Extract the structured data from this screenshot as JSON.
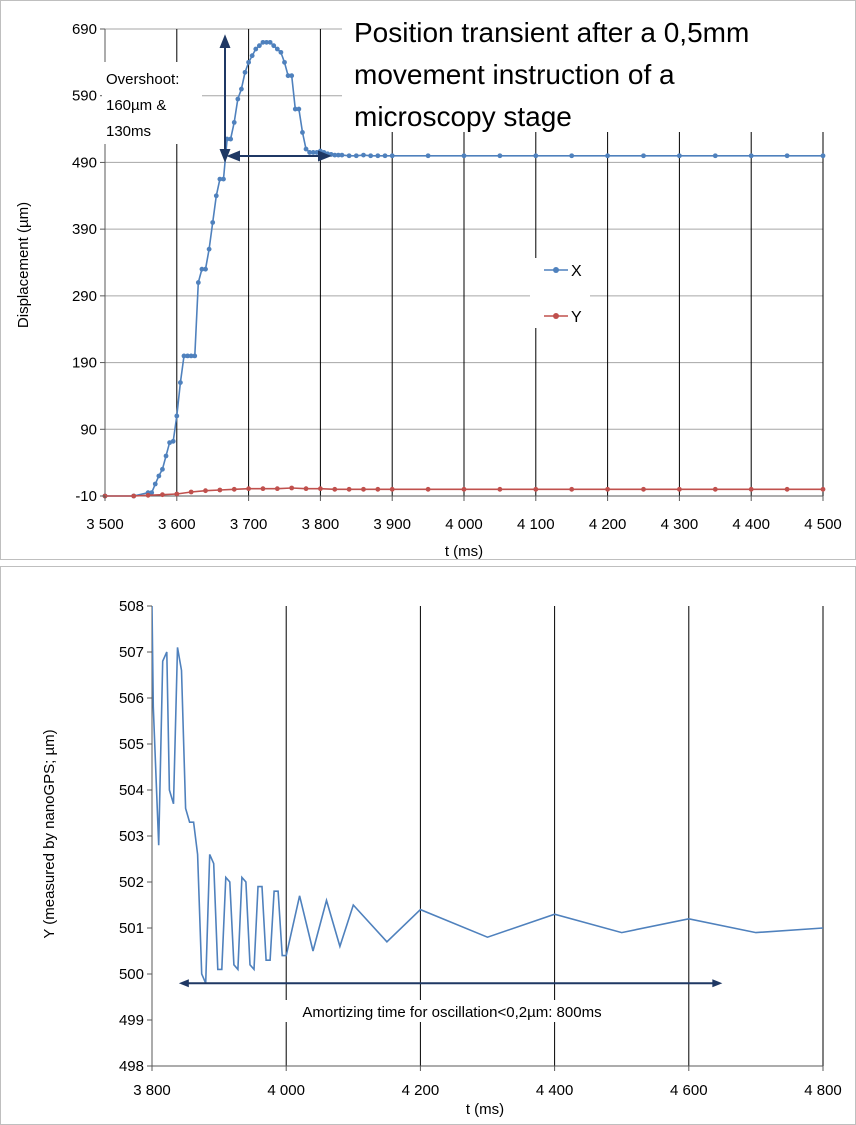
{
  "chart_data": [
    {
      "type": "line",
      "title": "Position transient after a 0,5mm movement instruction of a microscopy stage",
      "title_lines": [
        "Position transient after a 0,5mm",
        "movement instruction of a",
        "microscopy stage"
      ],
      "xlabel": "t (ms)",
      "ylabel": "Displacement (µm)",
      "xlim": [
        3500,
        4500
      ],
      "ylim": [
        -10,
        690
      ],
      "xticks": [
        3500,
        3600,
        3700,
        3800,
        3900,
        4000,
        4100,
        4200,
        4300,
        4400,
        4500
      ],
      "xtick_labels": [
        "3 500",
        "3 600",
        "3 700",
        "3 800",
        "3 900",
        "4 000",
        "4 100",
        "4 200",
        "4 300",
        "4 400",
        "4 500"
      ],
      "yticks": [
        -10,
        90,
        190,
        290,
        390,
        490,
        590,
        690
      ],
      "ytick_labels": [
        "-10",
        "90",
        "190",
        "290",
        "390",
        "490",
        "590",
        "690"
      ],
      "grid": "vertical and horizontal major gridlines",
      "legend_placement": "center-right",
      "series": [
        {
          "name": "X",
          "color": "#4f81bd",
          "marker": "circle",
          "x": [
            3500,
            3540,
            3560,
            3565,
            3570,
            3575,
            3580,
            3585,
            3590,
            3595,
            3600,
            3605,
            3610,
            3615,
            3620,
            3625,
            3630,
            3635,
            3640,
            3645,
            3650,
            3655,
            3660,
            3665,
            3670,
            3675,
            3680,
            3685,
            3690,
            3695,
            3700,
            3705,
            3710,
            3715,
            3720,
            3725,
            3730,
            3735,
            3740,
            3745,
            3750,
            3755,
            3760,
            3765,
            3770,
            3775,
            3780,
            3785,
            3790,
            3795,
            3800,
            3805,
            3810,
            3815,
            3820,
            3825,
            3830,
            3840,
            3850,
            3860,
            3870,
            3880,
            3890,
            3900,
            3950,
            4000,
            4050,
            4100,
            4150,
            4200,
            4250,
            4300,
            4350,
            4400,
            4450,
            4500
          ],
          "y": [
            -10,
            -10,
            -5,
            -5,
            8,
            20,
            30,
            50,
            70,
            72,
            110,
            160,
            200,
            200,
            200,
            200,
            310,
            330,
            330,
            360,
            400,
            440,
            465,
            465,
            525,
            525,
            550,
            585,
            600,
            625,
            640,
            650,
            660,
            665,
            670,
            670,
            670,
            665,
            660,
            655,
            640,
            620,
            620,
            570,
            570,
            535,
            510,
            505,
            505,
            505,
            507,
            505,
            503,
            502,
            501,
            501,
            501,
            500,
            500,
            501,
            500,
            500,
            500,
            500,
            500,
            500,
            500,
            500,
            500,
            500,
            500,
            500,
            500,
            500,
            500,
            500
          ]
        },
        {
          "name": "Y",
          "color": "#c0504d",
          "marker": "circle",
          "x": [
            3500,
            3540,
            3560,
            3580,
            3600,
            3620,
            3640,
            3660,
            3680,
            3700,
            3720,
            3740,
            3760,
            3780,
            3800,
            3820,
            3840,
            3860,
            3880,
            3900,
            3950,
            4000,
            4050,
            4100,
            4150,
            4200,
            4250,
            4300,
            4350,
            4400,
            4450,
            4500
          ],
          "y": [
            -10,
            -10,
            -9,
            -8,
            -7,
            -4,
            -2,
            -1,
            0,
            1,
            1,
            1,
            2,
            1,
            1,
            0,
            0,
            0,
            0,
            0,
            0,
            0,
            0,
            0,
            0,
            0,
            0,
            0,
            0,
            0,
            0,
            0
          ]
        }
      ],
      "annotations": [
        {
          "text_lines": [
            "Overshoot:",
            "160µm &",
            "130ms"
          ]
        }
      ]
    },
    {
      "type": "line",
      "title": "",
      "xlabel": "t (ms)",
      "ylabel": "Y (measured by nanoGPS; µm)",
      "xlim": [
        3800,
        4800
      ],
      "ylim": [
        498,
        508
      ],
      "xticks": [
        3800,
        4000,
        4200,
        4400,
        4600,
        4800
      ],
      "xtick_labels": [
        "3 800",
        "4 000",
        "4 200",
        "4 400",
        "4 600",
        "4 800"
      ],
      "yticks": [
        498,
        499,
        500,
        501,
        502,
        503,
        504,
        505,
        506,
        507,
        508
      ],
      "ytick_labels": [
        "498",
        "499",
        "500",
        "501",
        "502",
        "503",
        "504",
        "505",
        "506",
        "507",
        "508"
      ],
      "grid": "vertical gridlines",
      "series": [
        {
          "name": "",
          "color": "#4f81bd",
          "x": [
            3800,
            3802,
            3810,
            3816,
            3822,
            3826,
            3832,
            3838,
            3844,
            3850,
            3856,
            3862,
            3868,
            3874,
            3880,
            3886,
            3892,
            3898,
            3904,
            3910,
            3916,
            3922,
            3928,
            3934,
            3940,
            3946,
            3952,
            3958,
            3964,
            3970,
            3976,
            3982,
            3988,
            3994,
            4000,
            4020,
            4040,
            4060,
            4080,
            4100,
            4150,
            4200,
            4300,
            4400,
            4500,
            4600,
            4700,
            4800
          ],
          "y": [
            508,
            505.8,
            502.8,
            506.8,
            507.0,
            504.0,
            503.7,
            507.1,
            506.6,
            503.6,
            503.3,
            503.3,
            502.6,
            500.0,
            499.8,
            502.6,
            502.4,
            500.1,
            500.1,
            502.1,
            502.0,
            500.2,
            500.1,
            502.1,
            502.0,
            500.2,
            500.1,
            501.9,
            501.9,
            500.3,
            500.3,
            501.8,
            501.8,
            500.4,
            500.4,
            501.7,
            500.5,
            501.6,
            500.6,
            501.5,
            500.7,
            501.4,
            500.8,
            501.3,
            500.9,
            501.2,
            500.9,
            501.0
          ]
        }
      ],
      "annotations": [
        {
          "text": "Amortizing time for oscillation<0,2µm: 800ms",
          "x_start": 3840,
          "x_end": 4650,
          "y": 499.8
        }
      ]
    }
  ]
}
